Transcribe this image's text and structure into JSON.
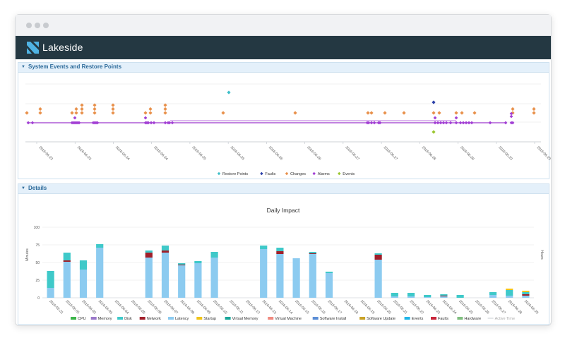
{
  "app": {
    "brand": "Lakeside"
  },
  "events_panel": {
    "title": "System Events and Restore Points",
    "x_ticks": [
      "2016-06-23",
      "2016-06-23",
      "2016-06-24",
      "2016-06-24",
      "2016-06-25",
      "2016-06-25",
      "2016-06-26",
      "2016-06-26",
      "2016-06-27",
      "2016-06-27",
      "2016-06-28",
      "2016-06-28",
      "2016-06-29",
      "2016-06-29"
    ],
    "legend": [
      {
        "label": "Restore Points",
        "color": "#3fbfc9"
      },
      {
        "label": "Faults",
        "color": "#2a3fa8"
      },
      {
        "label": "Changes",
        "color": "#e8904a"
      },
      {
        "label": "Alarms",
        "color": "#a23fd4"
      },
      {
        "label": "Events",
        "color": "#9ac62f"
      }
    ]
  },
  "details_panel": {
    "title": "Details",
    "chart_data": {
      "type": "bar",
      "title": "Daily Impact",
      "ylabel": "Minutes",
      "y2label": "Hours",
      "ylim": [
        0,
        100
      ],
      "y_ticks": [
        "0",
        "25",
        "50",
        "75",
        "100"
      ],
      "categories": [
        "2016-05-31",
        "2016-06-01",
        "2016-06-02",
        "2016-06-03",
        "2016-06-04",
        "2016-06-05",
        "2016-06-06",
        "2016-06-07",
        "2016-06-08",
        "2016-06-09",
        "2016-06-10",
        "2016-06-11",
        "2016-06-12",
        "2016-06-13",
        "2016-06-14",
        "2016-06-15",
        "2016-06-16",
        "2016-06-17",
        "2016-06-18",
        "2016-06-19",
        "2016-06-20",
        "2016-06-21",
        "2016-06-22",
        "2016-06-23",
        "2016-06-24",
        "2016-06-25",
        "2016-06-26",
        "2016-06-27",
        "2016-06-28",
        "2016-06-29"
      ],
      "series": [
        {
          "name": "CPU",
          "color": "#3cb54a",
          "values": [
            0,
            0,
            0,
            0,
            0,
            0,
            0,
            0,
            0,
            0,
            0,
            0,
            0,
            0,
            0,
            0,
            0,
            0,
            0,
            0,
            0,
            0,
            0,
            0,
            0,
            0,
            0,
            0,
            0,
            0
          ]
        },
        {
          "name": "Memory",
          "color": "#9a78c9",
          "values": [
            0,
            0,
            0,
            0,
            0,
            0,
            0,
            0,
            0,
            0,
            0,
            0,
            0,
            0,
            0,
            0,
            0,
            0,
            0,
            0,
            0,
            0,
            0,
            0,
            0,
            0,
            0,
            0,
            0,
            0
          ]
        },
        {
          "name": "Disk",
          "color": "#3fc9c9",
          "values": [
            24,
            11,
            13,
            5,
            0,
            0,
            3,
            7,
            2,
            3,
            8,
            0,
            0,
            5,
            5,
            0,
            2,
            2,
            0,
            0,
            2,
            5,
            5,
            3,
            2,
            4,
            0,
            4,
            8,
            3
          ]
        },
        {
          "name": "Network",
          "color": "#a01f2a",
          "values": [
            0,
            2,
            0,
            0,
            0,
            0,
            7,
            3,
            1,
            0,
            0,
            0,
            0,
            0,
            4,
            0,
            1,
            0,
            0,
            0,
            7,
            0,
            0,
            0,
            1,
            0,
            0,
            0,
            0,
            2
          ]
        },
        {
          "name": "Latency",
          "color": "#8ccbf0",
          "values": [
            14,
            51,
            40,
            71,
            0,
            0,
            57,
            64,
            46,
            49,
            57,
            0,
            0,
            69,
            62,
            56,
            62,
            35,
            0,
            0,
            54,
            2,
            2,
            1,
            2,
            0,
            0,
            4,
            3,
            3
          ]
        },
        {
          "name": "Startup",
          "color": "#f0c419",
          "values": [
            0,
            0,
            0,
            0,
            0,
            0,
            0,
            0,
            0,
            0,
            0,
            0,
            0,
            0,
            0,
            0,
            0,
            0,
            0,
            0,
            0,
            0,
            0,
            0,
            0,
            0,
            0,
            0,
            2,
            2
          ]
        },
        {
          "name": "Virtual Memory",
          "color": "#1aa69a",
          "values": [
            0,
            0,
            0,
            0,
            0,
            0,
            0,
            0,
            0,
            0,
            0,
            0,
            0,
            0,
            0,
            0,
            0,
            0,
            0,
            0,
            0,
            0,
            0,
            0,
            0,
            0,
            0,
            0,
            0,
            0
          ]
        },
        {
          "name": "Virtual Machine",
          "color": "#f08a80",
          "values": [
            0,
            0,
            0,
            0,
            0,
            0,
            0,
            0,
            0,
            0,
            0,
            0,
            0,
            0,
            0,
            0,
            0,
            0,
            0,
            0,
            0,
            0,
            0,
            0,
            0,
            0,
            0,
            0,
            0,
            0
          ]
        },
        {
          "name": "Software Install",
          "color": "#5b8ed6",
          "values": [
            0,
            0,
            0,
            0,
            0,
            0,
            0,
            0,
            0,
            0,
            0,
            0,
            0,
            0,
            0,
            0,
            0,
            0,
            0,
            0,
            0,
            0,
            0,
            0,
            0,
            0,
            0,
            0,
            0,
            0
          ]
        },
        {
          "name": "Software Update",
          "color": "#c9a227",
          "values": [
            0,
            0,
            0,
            0,
            0,
            0,
            0,
            0,
            0,
            0,
            0,
            0,
            0,
            0,
            0,
            0,
            0,
            0,
            0,
            0,
            0,
            0,
            0,
            0,
            0,
            0,
            0,
            0,
            0,
            0
          ]
        },
        {
          "name": "Events",
          "color": "#1fb5e8",
          "values": [
            0,
            0,
            0,
            0,
            0,
            0,
            0,
            0,
            0,
            0,
            0,
            0,
            0,
            0,
            0,
            0,
            0,
            0,
            0,
            0,
            0,
            0,
            0,
            0,
            0,
            0,
            0,
            0,
            0,
            0
          ]
        },
        {
          "name": "Faults",
          "color": "#c8253a",
          "values": [
            0,
            0,
            0,
            0,
            0,
            0,
            0,
            0,
            0,
            0,
            0,
            0,
            0,
            0,
            0,
            0,
            0,
            0,
            0,
            0,
            0,
            0,
            0,
            0,
            0,
            0,
            0,
            0,
            0,
            0
          ]
        },
        {
          "name": "Hardware",
          "color": "#80bf80",
          "values": [
            0,
            0,
            0,
            0,
            0,
            0,
            0,
            0,
            0,
            0,
            0,
            0,
            0,
            0,
            0,
            0,
            0,
            0,
            0,
            0,
            0,
            0,
            0,
            0,
            0,
            0,
            0,
            0,
            0,
            0
          ]
        }
      ],
      "extra_legend": {
        "label": "Active Time",
        "color": "#c9ccd0"
      }
    }
  }
}
